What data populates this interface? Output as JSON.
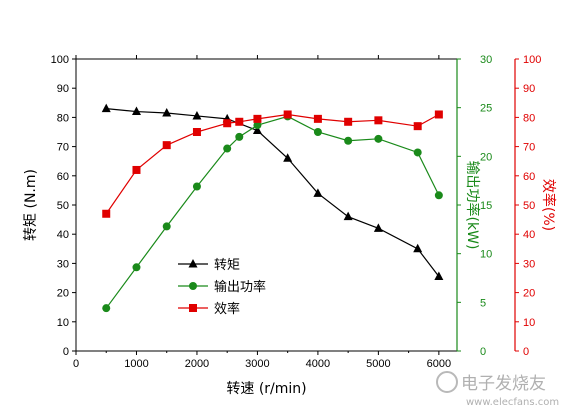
{
  "chart_data": {
    "type": "line",
    "xlabel": "转速 (r/min)",
    "x_ticks": [
      "0",
      "1000",
      "2000",
      "3000",
      "4000",
      "5000",
      "6000"
    ],
    "xlim": [
      0,
      6300
    ],
    "axes": {
      "left": {
        "label": "转矩 (N.m)",
        "ylim": [
          0,
          100
        ],
        "ticks": [
          "0",
          "10",
          "20",
          "30",
          "40",
          "50",
          "60",
          "70",
          "80",
          "90",
          "100"
        ],
        "color": "#000000"
      },
      "right1": {
        "label": "输出功率(kW)",
        "ylim": [
          0,
          30
        ],
        "ticks": [
          "0",
          "5",
          "10",
          "15",
          "20",
          "25",
          "30"
        ],
        "color": "#1a8a1a"
      },
      "right2": {
        "label": "效率(%)",
        "ylim": [
          0,
          100
        ],
        "ticks": [
          "0",
          "10",
          "20",
          "30",
          "40",
          "50",
          "60",
          "70",
          "80",
          "90",
          "100"
        ],
        "color": "#e00000"
      }
    },
    "series": [
      {
        "name": "转矩",
        "axis": "left",
        "color": "#000000",
        "marker": "triangle",
        "x": [
          500,
          1000,
          1500,
          2000,
          2500,
          3000,
          3500,
          4000,
          4500,
          5000,
          5650,
          6000
        ],
        "y": [
          83,
          82,
          81.5,
          80.5,
          79.5,
          75.5,
          66,
          54,
          46,
          42,
          35,
          25.5
        ]
      },
      {
        "name": "输出功率",
        "axis": "right1",
        "color": "#1a8a1a",
        "marker": "circle",
        "x": [
          500,
          1000,
          1500,
          2000,
          2500,
          2700,
          3000,
          3500,
          4000,
          4500,
          5000,
          5650,
          6000
        ],
        "y": [
          4.4,
          8.6,
          12.8,
          16.9,
          20.8,
          22,
          23.2,
          24.1,
          22.5,
          21.6,
          21.8,
          20.4,
          16
        ]
      },
      {
        "name": "效率",
        "axis": "right2",
        "color": "#e00000",
        "marker": "square",
        "x": [
          500,
          1000,
          1500,
          2000,
          2500,
          2700,
          3000,
          3500,
          4000,
          4500,
          5000,
          5650,
          6000
        ],
        "y": [
          47,
          62,
          70.5,
          75,
          78,
          78.5,
          79.5,
          81,
          79.5,
          78.5,
          79,
          77,
          81
        ]
      }
    ]
  },
  "watermark": {
    "text": "电子发烧友",
    "url": "www.elecfans.com"
  }
}
